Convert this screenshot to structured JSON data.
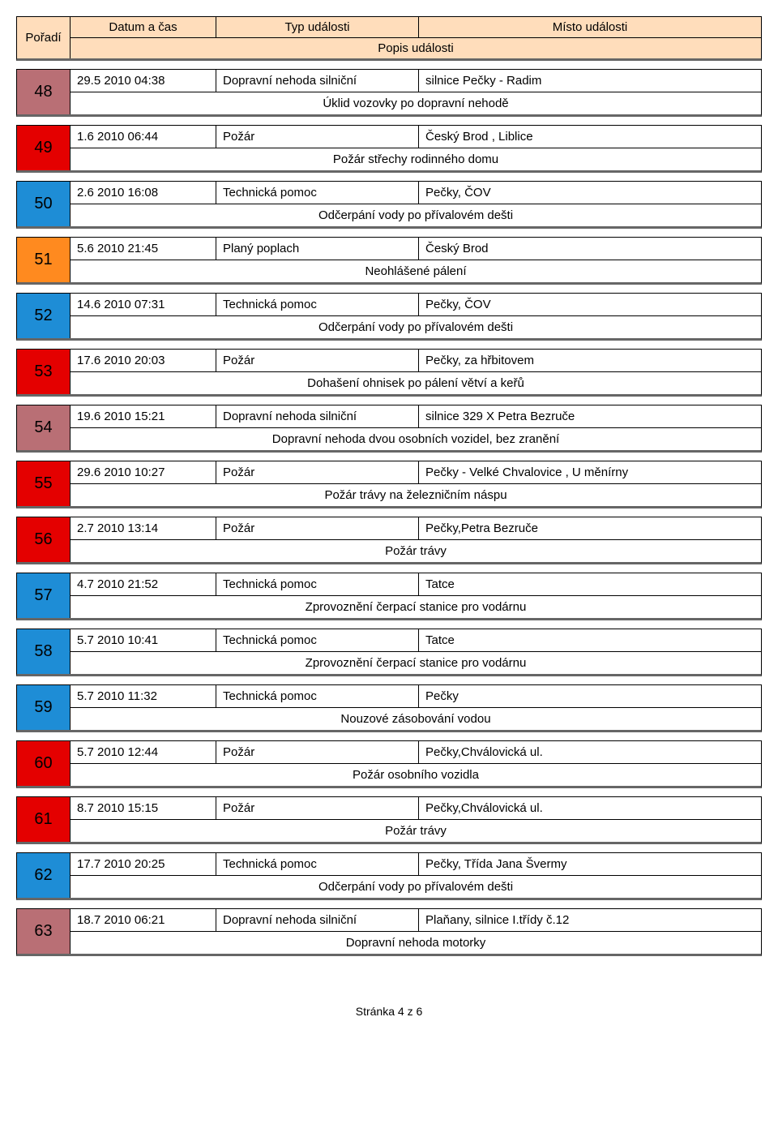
{
  "colors": {
    "header_bg": "#ffddbb",
    "num_colors": {
      "traffic": "#b96f75",
      "fire": "#e40000",
      "tech": "#1e8dd6",
      "alarm": "#ff8a1f"
    },
    "border": "#000000",
    "shadow": "#666666"
  },
  "header": {
    "poradi": "Pořadí",
    "datum": "Datum a čas",
    "typ": "Typ události",
    "misto": "Místo události",
    "popis": "Popis události"
  },
  "events": [
    {
      "num": "48",
      "kind": "traffic",
      "datum": "29.5 2010 04:38",
      "typ": "Dopravní nehoda  silniční",
      "misto": "silnice Pečky - Radim",
      "popis": "Úklid vozovky po dopravní nehodě"
    },
    {
      "num": "49",
      "kind": "fire",
      "datum": "1.6 2010 06:44",
      "typ": "Požár",
      "misto": "Český Brod , Liblice",
      "popis": "Požár střechy rodinného domu"
    },
    {
      "num": "50",
      "kind": "tech",
      "datum": "2.6 2010 16:08",
      "typ": "Technická pomoc",
      "misto": "Pečky, ČOV",
      "popis": "Odčerpání vody po přívalovém dešti"
    },
    {
      "num": "51",
      "kind": "alarm",
      "datum": "5.6 2010 21:45",
      "typ": "Planý poplach",
      "misto": "Český Brod",
      "popis": "Neohlášené pálení"
    },
    {
      "num": "52",
      "kind": "tech",
      "datum": "14.6 2010 07:31",
      "typ": "Technická pomoc",
      "misto": "Pečky, ČOV",
      "popis": "Odčerpání vody po přívalovém dešti"
    },
    {
      "num": "53",
      "kind": "fire",
      "datum": "17.6 2010 20:03",
      "typ": "Požár",
      "misto": "Pečky, za hřbitovem",
      "popis": "Dohašení ohnisek po pálení větví a keřů"
    },
    {
      "num": "54",
      "kind": "traffic",
      "datum": "19.6 2010 15:21",
      "typ": "Dopravní nehoda  silniční",
      "misto": "silnice 329 X Petra Bezruče",
      "popis": "Dopravní nehoda dvou osobních vozidel, bez zranění"
    },
    {
      "num": "55",
      "kind": "fire",
      "datum": "29.6 2010 10:27",
      "typ": "Požár",
      "misto": "Pečky - Velké Chvalovice , U měnírny",
      "popis": "Požár trávy na železničním náspu"
    },
    {
      "num": "56",
      "kind": "fire",
      "datum": "2.7 2010 13:14",
      "typ": "Požár",
      "misto": "Pečky,Petra Bezruče",
      "popis": "Požár trávy"
    },
    {
      "num": "57",
      "kind": "tech",
      "datum": "4.7 2010 21:52",
      "typ": "Technická pomoc",
      "misto": "Tatce",
      "popis": "Zprovoznění čerpací stanice pro vodárnu"
    },
    {
      "num": "58",
      "kind": "tech",
      "datum": "5.7 2010 10:41",
      "typ": "Technická pomoc",
      "misto": "Tatce",
      "popis": "Zprovoznění čerpací stanice pro vodárnu"
    },
    {
      "num": "59",
      "kind": "tech",
      "datum": "5.7 2010 11:32",
      "typ": "Technická pomoc",
      "misto": "Pečky",
      "popis": "Nouzové zásobování vodou"
    },
    {
      "num": "60",
      "kind": "fire",
      "datum": "5.7 2010 12:44",
      "typ": "Požár",
      "misto": "Pečky,Chválovická ul.",
      "popis": "Požár osobního vozidla"
    },
    {
      "num": "61",
      "kind": "fire",
      "datum": "8.7 2010 15:15",
      "typ": "Požár",
      "misto": "Pečky,Chválovická ul.",
      "popis": "Požár trávy"
    },
    {
      "num": "62",
      "kind": "tech",
      "datum": "17.7 2010 20:25",
      "typ": "Technická pomoc",
      "misto": "Pečky, Třída Jana Švermy",
      "popis": "Odčerpání vody po přívalovém dešti"
    },
    {
      "num": "63",
      "kind": "traffic",
      "datum": "18.7 2010 06:21",
      "typ": "Dopravní nehoda  silniční",
      "misto": "Plaňany, silnice I.třídy č.12",
      "popis": "Dopravní nehoda motorky"
    }
  ],
  "footer": "Stránka 4 z 6"
}
